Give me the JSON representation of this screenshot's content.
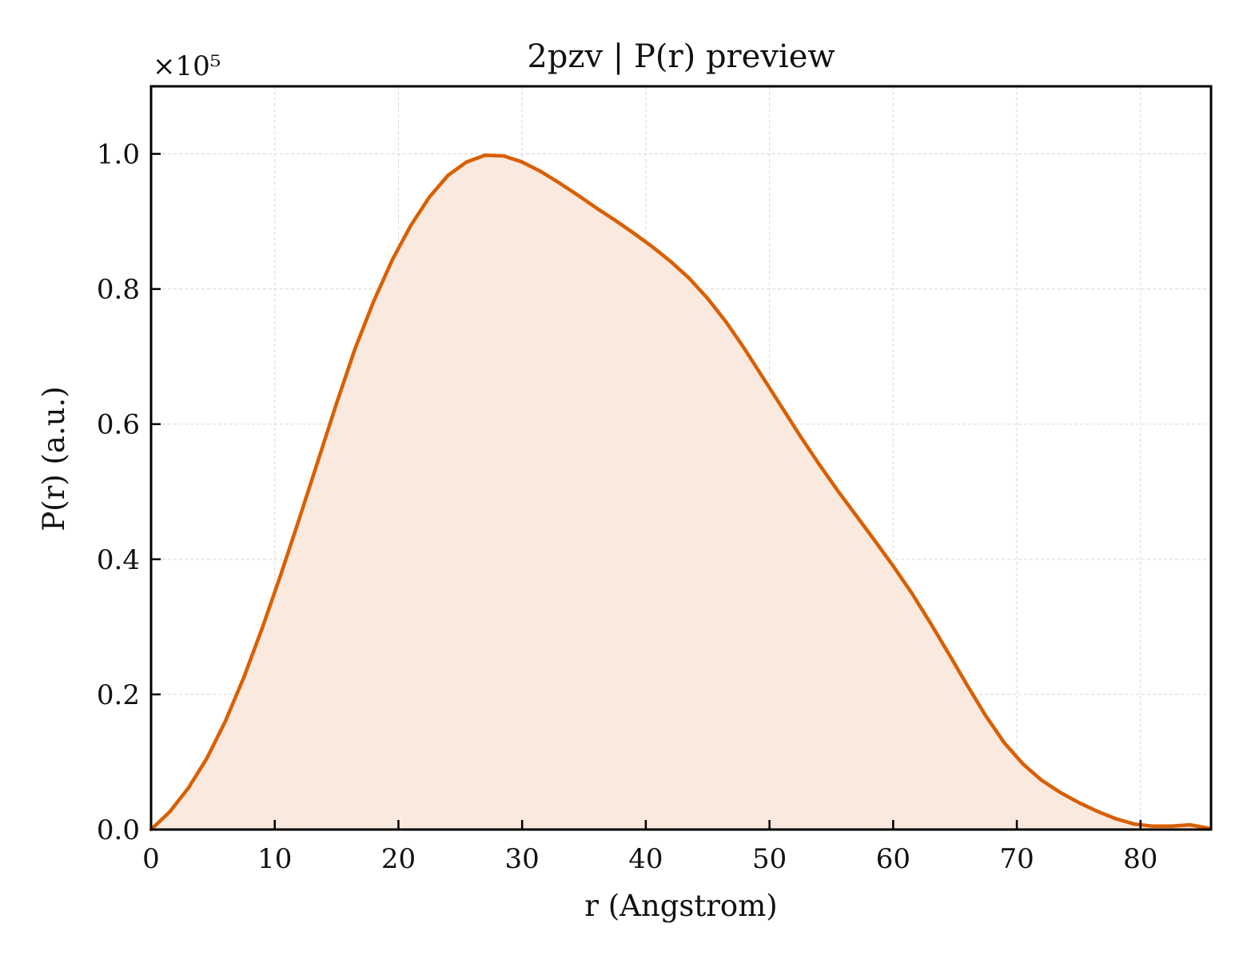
{
  "chart_data": {
    "type": "area",
    "title": "2pzv | P(r) preview",
    "xlabel": "r (Angstrom)",
    "ylabel": "P(r) (a.u.)",
    "y_multiplier_label": "×10⁵",
    "xlim": [
      0,
      85.7
    ],
    "ylim": [
      0,
      1.1
    ],
    "x_ticks": [
      0,
      10,
      20,
      30,
      40,
      50,
      60,
      70,
      80
    ],
    "y_ticks": [
      0.0,
      0.2,
      0.4,
      0.6,
      0.8,
      1.0
    ],
    "x_tick_labels": [
      "0",
      "10",
      "20",
      "30",
      "40",
      "50",
      "60",
      "70",
      "80"
    ],
    "y_tick_labels": [
      "0.0",
      "0.2",
      "0.4",
      "0.6",
      "0.8",
      "1.0"
    ],
    "grid": true,
    "line_color": "#d95f02",
    "fill_color": "#fae9de",
    "x": [
      0,
      1.5,
      3,
      4.5,
      6,
      7.5,
      9,
      10.5,
      12,
      13.5,
      15,
      16.5,
      18,
      19.5,
      21,
      22.5,
      24,
      25.5,
      27,
      28.5,
      30,
      31.5,
      33,
      34.5,
      36,
      37.5,
      39,
      40.5,
      42,
      43.5,
      45,
      46.5,
      48,
      49.5,
      51,
      52.5,
      54,
      55.5,
      57,
      58.5,
      60,
      61.5,
      63,
      64.5,
      66,
      67.5,
      69,
      70.5,
      72,
      73.5,
      75,
      76.5,
      78,
      79.5,
      81,
      82.5,
      84,
      85.5
    ],
    "y": [
      0.0,
      0.026,
      0.061,
      0.105,
      0.16,
      0.225,
      0.299,
      0.378,
      0.461,
      0.546,
      0.631,
      0.712,
      0.782,
      0.843,
      0.894,
      0.936,
      0.968,
      0.988,
      0.998,
      0.997,
      0.988,
      0.974,
      0.957,
      0.939,
      0.92,
      0.902,
      0.883,
      0.863,
      0.841,
      0.816,
      0.786,
      0.751,
      0.711,
      0.668,
      0.625,
      0.582,
      0.541,
      0.502,
      0.465,
      0.428,
      0.39,
      0.35,
      0.306,
      0.26,
      0.213,
      0.168,
      0.128,
      0.097,
      0.073,
      0.055,
      0.04,
      0.027,
      0.016,
      0.008,
      0.005,
      0.005,
      0.007,
      0.002
    ]
  }
}
